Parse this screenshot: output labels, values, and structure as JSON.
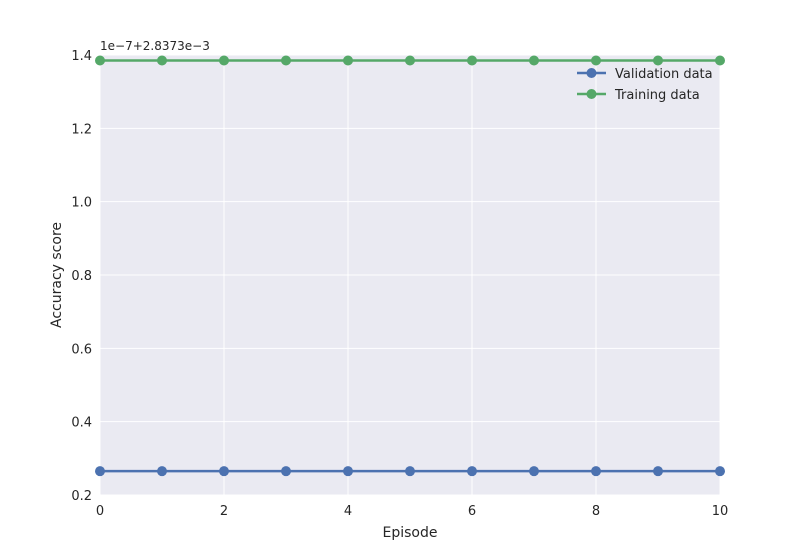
{
  "chart_data": {
    "type": "line",
    "xlabel": "Episode",
    "ylabel": "Accuracy score",
    "offset_text": "1e−7+2.8373e−3",
    "xlim": [
      0,
      10
    ],
    "ylim": [
      0.2,
      1.4
    ],
    "xticks": [
      0,
      2,
      4,
      6,
      8,
      10
    ],
    "xtick_labels": [
      "0",
      "2",
      "4",
      "6",
      "8",
      "10"
    ],
    "yticks": [
      0.2,
      0.4,
      0.6,
      0.8,
      1.0,
      1.2,
      1.4
    ],
    "ytick_labels": [
      "0.2",
      "0.4",
      "0.6",
      "0.8",
      "1.0",
      "1.2",
      "1.4"
    ],
    "grid": true,
    "legend_position": "top-right",
    "background_color": "#eaeaf2",
    "grid_color": "#ffffff",
    "x": [
      0,
      1,
      2,
      3,
      4,
      5,
      6,
      7,
      8,
      9,
      10
    ],
    "series": [
      {
        "name": "Validation data",
        "color": "#4c72b0",
        "values": [
          0.265,
          0.265,
          0.265,
          0.265,
          0.265,
          0.265,
          0.265,
          0.265,
          0.265,
          0.265,
          0.265
        ]
      },
      {
        "name": "Training data",
        "color": "#55a868",
        "values": [
          1.385,
          1.385,
          1.385,
          1.385,
          1.385,
          1.385,
          1.385,
          1.385,
          1.385,
          1.385,
          1.385
        ]
      }
    ]
  }
}
